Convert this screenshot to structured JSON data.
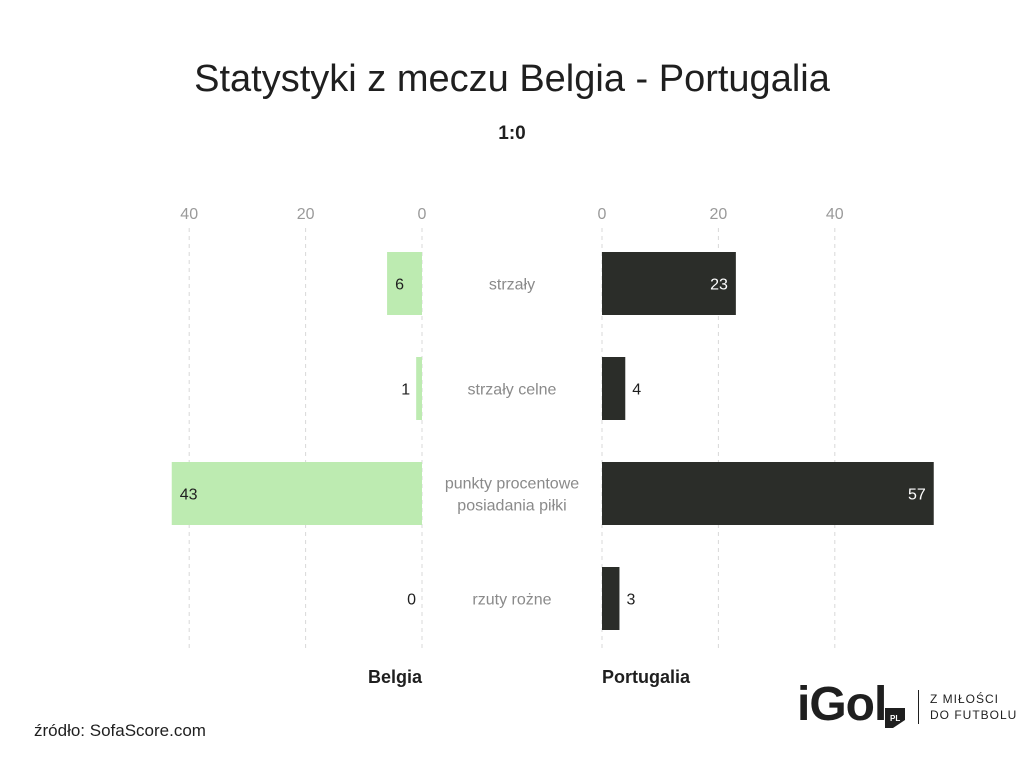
{
  "chart_data": {
    "type": "bar",
    "title": "Statystyki z meczu Belgia - Portugalia",
    "subtitle": "1:0",
    "categories": [
      "strzały",
      "strzały celne",
      "punkty procentowe posiadania piłki",
      "rzuty rożne"
    ],
    "categories_display": [
      [
        "strzały"
      ],
      [
        "strzały celne"
      ],
      [
        "punkty procentowe",
        "posiadania piłki"
      ],
      [
        "rzuty rożne"
      ]
    ],
    "series": [
      {
        "name": "Belgia",
        "values": [
          6,
          1,
          43,
          0
        ],
        "color": "#bdebb1"
      },
      {
        "name": "Portugalia",
        "values": [
          23,
          4,
          57,
          3
        ],
        "color": "#2b2d29"
      }
    ],
    "xlim": [
      0,
      57
    ],
    "ticks": [
      0,
      20,
      40
    ],
    "grid": true
  },
  "source": "źródło: SofaScore.com",
  "logo": {
    "wordmark": "iGol",
    "badge": "PL",
    "tagline_line1": "Z MIŁOŚCI",
    "tagline_line2": "DO FUTBOLU"
  },
  "colors": {
    "text": "#1f1f1f",
    "category_label": "#8a8a8a",
    "tick_label": "#9a9a9a",
    "grid": "#d8d8d8"
  }
}
